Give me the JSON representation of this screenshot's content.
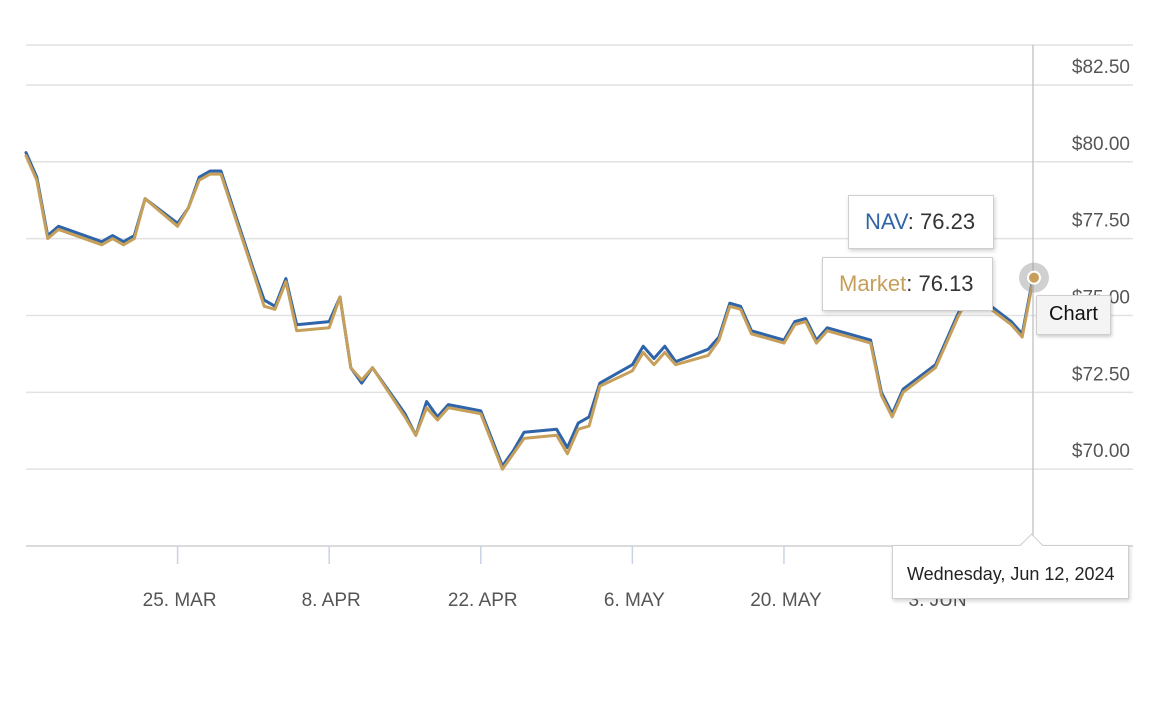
{
  "chart_data": {
    "type": "line",
    "y_currency": "$",
    "yticks": [
      "$82.50",
      "$80.00",
      "$77.50",
      "$75.00",
      "$72.50",
      "$70.00"
    ],
    "ylim": [
      67.5,
      83.8
    ],
    "xticks": [
      {
        "label": "25. MAR",
        "date": "2024-03-25"
      },
      {
        "label": "8. APR",
        "date": "2024-04-08"
      },
      {
        "label": "22. APR",
        "date": "2024-04-22"
      },
      {
        "label": "6. MAY",
        "date": "2024-05-06"
      },
      {
        "label": "20. MAY",
        "date": "2024-05-20"
      },
      {
        "label": "3. JUN",
        "date": "2024-06-03"
      }
    ],
    "x": [
      "2024-03-11",
      "2024-03-12",
      "2024-03-13",
      "2024-03-14",
      "2024-03-18",
      "2024-03-19",
      "2024-03-20",
      "2024-03-21",
      "2024-03-22",
      "2024-03-25",
      "2024-03-26",
      "2024-03-27",
      "2024-03-28",
      "2024-03-29",
      "2024-04-01",
      "2024-04-02",
      "2024-04-03",
      "2024-04-04",
      "2024-04-05",
      "2024-04-08",
      "2024-04-09",
      "2024-04-10",
      "2024-04-11",
      "2024-04-12",
      "2024-04-15",
      "2024-04-16",
      "2024-04-17",
      "2024-04-18",
      "2024-04-19",
      "2024-04-22",
      "2024-04-23",
      "2024-04-24",
      "2024-04-25",
      "2024-04-26",
      "2024-04-29",
      "2024-04-30",
      "2024-05-01",
      "2024-05-02",
      "2024-05-03",
      "2024-05-06",
      "2024-05-07",
      "2024-05-08",
      "2024-05-09",
      "2024-05-10",
      "2024-05-13",
      "2024-05-14",
      "2024-05-15",
      "2024-05-16",
      "2024-05-17",
      "2024-05-20",
      "2024-05-21",
      "2024-05-22",
      "2024-05-23",
      "2024-05-24",
      "2024-05-28",
      "2024-05-29",
      "2024-05-30",
      "2024-05-31",
      "2024-06-03",
      "2024-06-04",
      "2024-06-05",
      "2024-06-06",
      "2024-06-07",
      "2024-06-10",
      "2024-06-11",
      "2024-06-12"
    ],
    "series": [
      {
        "name": "NAV",
        "color": "#2f64a8",
        "values": [
          80.3,
          79.5,
          77.6,
          77.9,
          77.4,
          77.6,
          77.4,
          77.6,
          78.8,
          78.0,
          78.5,
          79.5,
          79.7,
          79.7,
          76.5,
          75.5,
          75.3,
          76.2,
          74.7,
          74.8,
          75.6,
          73.3,
          72.8,
          73.3,
          71.8,
          71.1,
          72.2,
          71.7,
          72.1,
          71.9,
          71.0,
          70.1,
          70.6,
          71.2,
          71.3,
          70.7,
          71.5,
          71.7,
          72.8,
          73.4,
          74.0,
          73.6,
          74.0,
          73.5,
          73.9,
          74.3,
          75.4,
          75.3,
          74.5,
          74.2,
          74.8,
          74.9,
          74.2,
          74.6,
          74.2,
          72.5,
          71.8,
          72.6,
          73.4,
          74.2,
          75.0,
          75.7,
          75.6,
          74.8,
          74.4,
          76.23
        ]
      },
      {
        "name": "Market",
        "color": "#c6a05a",
        "values": [
          80.2,
          79.4,
          77.5,
          77.8,
          77.3,
          77.5,
          77.3,
          77.5,
          78.8,
          77.9,
          78.5,
          79.4,
          79.6,
          79.6,
          76.4,
          75.3,
          75.2,
          76.1,
          74.5,
          74.6,
          75.6,
          73.3,
          72.9,
          73.3,
          71.7,
          71.1,
          72.0,
          71.6,
          72.0,
          71.8,
          70.9,
          70.0,
          70.5,
          71.0,
          71.1,
          70.5,
          71.3,
          71.4,
          72.7,
          73.2,
          73.8,
          73.4,
          73.8,
          73.4,
          73.7,
          74.2,
          75.3,
          75.2,
          74.4,
          74.1,
          74.7,
          74.8,
          74.1,
          74.5,
          74.1,
          72.4,
          71.7,
          72.5,
          73.3,
          74.1,
          74.9,
          75.6,
          75.5,
          74.7,
          74.3,
          76.13
        ]
      }
    ],
    "hover": {
      "nav_label": "NAV",
      "nav_value": "76.23",
      "market_label": "Market",
      "market_value": "76.13",
      "date_label": "Wednesday, Jun 12, 2024"
    },
    "grid": true,
    "legend": "none"
  },
  "controls": {
    "chart_button": "Chart"
  }
}
